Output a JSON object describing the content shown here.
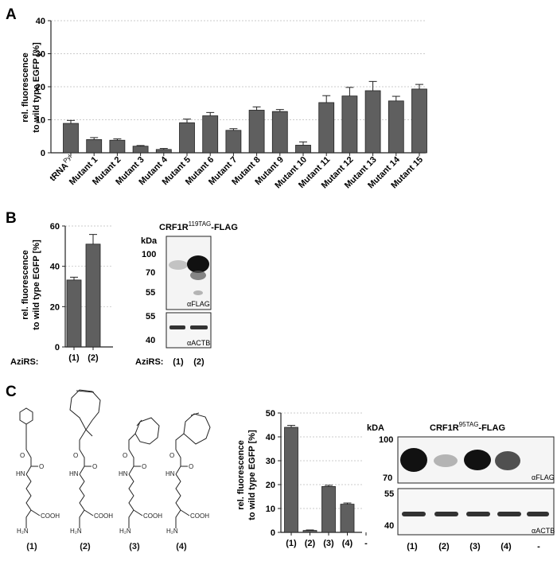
{
  "panels": {
    "a_letter": "A",
    "b_letter": "B",
    "c_letter": "C"
  },
  "chart_data": [
    {
      "id": "panelA",
      "type": "bar",
      "ylabel_line1": "rel. fluorescence",
      "ylabel_line2": "to wild type EGFP [%]",
      "ylim": [
        0,
        40
      ],
      "yticks": [
        0,
        10,
        20,
        30,
        40
      ],
      "grid": true,
      "categories": [
        "tRNA",
        "Mutant 1",
        "Mutant 2",
        "Mutant 3",
        "Mutant 4",
        "Mutant 5",
        "Mutant 6",
        "Mutant 7",
        "Mutant 8",
        "Mutant 9",
        "Mutant 10",
        "Mutant 11",
        "Mutant 12",
        "Mutant 13",
        "Mutant 14",
        "Mutant 15"
      ],
      "first_cat_superscript": "Pyl",
      "values": [
        8.9,
        4.0,
        3.8,
        2.0,
        1.0,
        9.1,
        11.2,
        6.8,
        12.9,
        12.5,
        2.3,
        15.2,
        17.2,
        18.8,
        15.7,
        19.3
      ],
      "errors": [
        0.9,
        0.6,
        0.4,
        0.2,
        0.3,
        1.1,
        1.0,
        0.5,
        1.0,
        0.6,
        1.0,
        2.1,
        2.6,
        2.8,
        1.4,
        1.4
      ]
    },
    {
      "id": "panelB",
      "type": "bar",
      "ylabel_line1": "rel. fluorescence",
      "ylabel_line2": "to wild type EGFP [%]",
      "ylim": [
        0,
        60
      ],
      "yticks": [
        0,
        20,
        40,
        60
      ],
      "grid": true,
      "categories": [
        "(1)",
        "(2)"
      ],
      "values": [
        33.2,
        51.0
      ],
      "errors": [
        1.4,
        4.8
      ]
    },
    {
      "id": "panelC",
      "type": "bar",
      "ylabel_line1": "rel. fluorescence",
      "ylabel_line2": "to wild type EGFP [%]",
      "ylim": [
        0,
        50
      ],
      "yticks": [
        0,
        10,
        20,
        30,
        40,
        50
      ],
      "grid": true,
      "categories": [
        "(1)",
        "(2)",
        "(3)",
        "(4)",
        "-"
      ],
      "values": [
        44.0,
        0.8,
        19.2,
        11.8,
        0.0
      ],
      "errors": [
        0.8,
        0.2,
        0.5,
        0.5,
        0.0
      ]
    }
  ],
  "blotB": {
    "title_main": "CRF1R",
    "title_sup": "119TAG",
    "title_tail": "-FLAG",
    "kda": "kDa",
    "markers_top": [
      "100",
      "70",
      "55"
    ],
    "markers_bottom": [
      "55",
      "40"
    ],
    "antibody_top": "αFLAG",
    "antibody_bottom": "αACTB",
    "lanes": [
      "(1)",
      "(2)"
    ]
  },
  "blotC": {
    "title_main": "CRF1R",
    "title_sup": "95TAG",
    "title_tail": "-FLAG",
    "kda": "kDA",
    "markers_top": [
      "100",
      "70"
    ],
    "markers_bottom": [
      "55",
      "40"
    ],
    "antibody_top": "αFLAG",
    "antibody_bottom": "αACTB",
    "lanes": [
      "(1)",
      "(2)",
      "(3)",
      "(4)",
      "-"
    ]
  },
  "aziRS_label": "AziRS:",
  "compounds": [
    "(1)",
    "(2)",
    "(3)",
    "(4)"
  ],
  "compound_text": {
    "hn": "HN",
    "h2n": "H₂N",
    "cooh": "COOH",
    "o": "O"
  }
}
